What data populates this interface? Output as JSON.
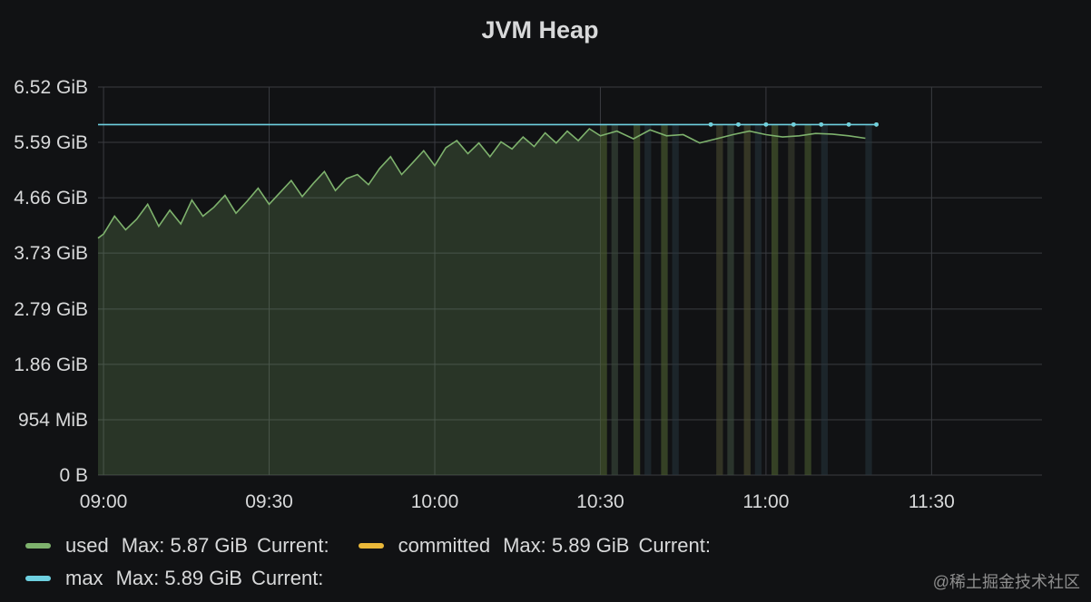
{
  "panel": {
    "title": "JVM Heap"
  },
  "chart_data": {
    "type": "line",
    "title": "JVM Heap",
    "xlabel": "",
    "ylabel": "",
    "y_ticks": [
      "0 B",
      "954 MiB",
      "1.86 GiB",
      "2.79 GiB",
      "3.73 GiB",
      "4.66 GiB",
      "5.59 GiB",
      "6.52 GiB"
    ],
    "y_tick_values_gib": [
      0,
      0.93,
      1.86,
      2.79,
      3.73,
      4.66,
      5.59,
      6.52
    ],
    "x_ticks": [
      "09:00",
      "09:30",
      "10:00",
      "10:30",
      "11:00",
      "11:30"
    ],
    "x_tick_values": [
      "2024-01-01T09:00",
      "2024-01-01T09:30",
      "2024-01-01T10:00",
      "2024-01-01T10:30",
      "2024-01-01T11:00",
      "2024-01-01T11:30"
    ],
    "xlim": [
      "08:59",
      "11:50"
    ],
    "ylim": [
      0,
      6.52
    ],
    "grid": true,
    "legend_position": "bottom",
    "series": [
      {
        "name": "used",
        "color": "#7eb26d",
        "stat_max": "Max: 5.87 GiB",
        "stat_current": "Current:",
        "points": [
          [
            "08:59",
            3.98
          ],
          [
            "09:00",
            4.05
          ],
          [
            "09:02",
            4.35
          ],
          [
            "09:04",
            4.12
          ],
          [
            "09:06",
            4.3
          ],
          [
            "09:08",
            4.55
          ],
          [
            "09:10",
            4.18
          ],
          [
            "09:12",
            4.45
          ],
          [
            "09:14",
            4.22
          ],
          [
            "09:16",
            4.62
          ],
          [
            "09:18",
            4.35
          ],
          [
            "09:20",
            4.5
          ],
          [
            "09:22",
            4.7
          ],
          [
            "09:24",
            4.4
          ],
          [
            "09:26",
            4.6
          ],
          [
            "09:28",
            4.82
          ],
          [
            "09:30",
            4.55
          ],
          [
            "09:32",
            4.75
          ],
          [
            "09:34",
            4.95
          ],
          [
            "09:36",
            4.68
          ],
          [
            "09:38",
            4.9
          ],
          [
            "09:40",
            5.1
          ],
          [
            "09:42",
            4.78
          ],
          [
            "09:44",
            4.98
          ],
          [
            "09:46",
            5.05
          ],
          [
            "09:48",
            4.88
          ],
          [
            "09:50",
            5.15
          ],
          [
            "09:52",
            5.35
          ],
          [
            "09:54",
            5.05
          ],
          [
            "09:56",
            5.25
          ],
          [
            "09:58",
            5.45
          ],
          [
            "10:00",
            5.2
          ],
          [
            "10:02",
            5.5
          ],
          [
            "10:04",
            5.62
          ],
          [
            "10:06",
            5.4
          ],
          [
            "10:08",
            5.58
          ],
          [
            "10:10",
            5.35
          ],
          [
            "10:12",
            5.6
          ],
          [
            "10:14",
            5.48
          ],
          [
            "10:16",
            5.68
          ],
          [
            "10:18",
            5.52
          ],
          [
            "10:20",
            5.75
          ],
          [
            "10:22",
            5.58
          ],
          [
            "10:24",
            5.78
          ],
          [
            "10:26",
            5.62
          ],
          [
            "10:28",
            5.82
          ],
          [
            "10:30",
            5.7
          ],
          [
            "10:33",
            5.78
          ],
          [
            "10:36",
            5.65
          ],
          [
            "10:39",
            5.8
          ],
          [
            "10:42",
            5.7
          ],
          [
            "10:45",
            5.72
          ],
          [
            "10:48",
            5.58
          ],
          [
            "10:51",
            5.65
          ],
          [
            "10:54",
            5.72
          ],
          [
            "10:57",
            5.78
          ],
          [
            "11:00",
            5.72
          ],
          [
            "11:03",
            5.68
          ],
          [
            "11:06",
            5.7
          ],
          [
            "11:09",
            5.74
          ],
          [
            "11:12",
            5.73
          ],
          [
            "11:15",
            5.7
          ],
          [
            "11:18",
            5.66
          ]
        ]
      },
      {
        "name": "committed",
        "color": "#eab839",
        "stat_max": "Max: 5.89 GiB",
        "stat_current": "Current:",
        "points": [
          [
            "08:59",
            5.89
          ],
          [
            "10:30",
            5.89
          ],
          [
            "10:50",
            5.89
          ],
          [
            "11:10",
            5.89
          ],
          [
            "11:20",
            5.89
          ]
        ]
      },
      {
        "name": "max",
        "color": "#6ed0e0",
        "stat_max": "Max: 5.89 GiB",
        "stat_current": "Current:",
        "points": [
          [
            "08:59",
            5.89
          ],
          [
            "10:30",
            5.89
          ],
          [
            "10:50",
            5.89
          ],
          [
            "11:10",
            5.89
          ],
          [
            "11:20",
            5.89
          ]
        ]
      }
    ]
  },
  "watermark": "@稀土掘金技术社区"
}
